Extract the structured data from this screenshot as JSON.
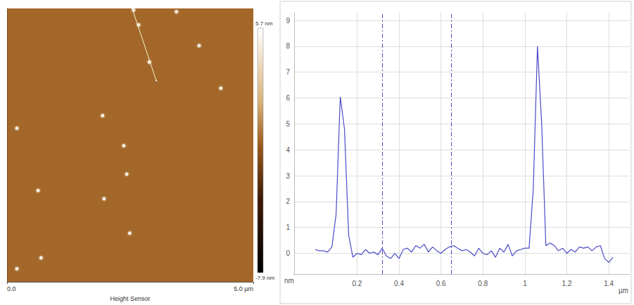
{
  "chart_data": [
    {
      "type": "scatter",
      "xlabel": "Height Sensor",
      "x": [
        2.57,
        3.44,
        2.67,
        2.89,
        3.9,
        4.34,
        0.2,
        1.94,
        2.37,
        2.43,
        0.63,
        1.97,
        2.49,
        0.69,
        0.2
      ],
      "values": [
        4.97,
        4.94,
        4.7,
        4.02,
        4.32,
        3.54,
        2.81,
        3.04,
        2.49,
        1.97,
        1.67,
        1.52,
        0.89,
        0.44,
        0.24
      ],
      "xlim": [
        0,
        5
      ],
      "ylim": [
        0,
        5
      ],
      "xticks": [
        {
          "value": 0,
          "label": "0.0"
        },
        {
          "value": 5,
          "label": "5.0 µm"
        }
      ],
      "tick_labels": "x",
      "color": "#ffffff",
      "marker": "circle",
      "profile_line": {
        "x": [
          2.54,
          3.03
        ],
        "y": [
          5.0,
          3.68
        ]
      },
      "color_bar": {
        "range": [
          -7.9,
          5.7
        ],
        "ticks": [
          {
            "value": 5.7,
            "label": "5.7 nm"
          },
          {
            "value": -7.9,
            "label": "-7.9 nm"
          }
        ]
      }
    },
    {
      "type": "line",
      "xlabel": "µm",
      "ylabel": "nm",
      "x": [
        0.0,
        0.02,
        0.04,
        0.06,
        0.08,
        0.1,
        0.12,
        0.14,
        0.16,
        0.18,
        0.2,
        0.22,
        0.24,
        0.26,
        0.28,
        0.3,
        0.32,
        0.34,
        0.36,
        0.38,
        0.4,
        0.42,
        0.44,
        0.46,
        0.48,
        0.5,
        0.52,
        0.54,
        0.56,
        0.58,
        0.6,
        0.62,
        0.64,
        0.66,
        0.68,
        0.7,
        0.72,
        0.74,
        0.76,
        0.78,
        0.8,
        0.82,
        0.84,
        0.86,
        0.88,
        0.9,
        0.92,
        0.94,
        0.96,
        0.98,
        1.0,
        1.02,
        1.04,
        1.06,
        1.08,
        1.1,
        1.12,
        1.14,
        1.16,
        1.18,
        1.2,
        1.22,
        1.24,
        1.26,
        1.28,
        1.3,
        1.32,
        1.34,
        1.36,
        1.38,
        1.4,
        1.42
      ],
      "values": [
        0.15,
        0.1,
        0.1,
        0.05,
        0.25,
        1.5,
        6.05,
        4.8,
        0.7,
        -0.15,
        0.0,
        -0.05,
        0.15,
        0.0,
        0.05,
        -0.05,
        0.2,
        -0.1,
        -0.2,
        0.0,
        -0.2,
        0.15,
        0.2,
        0.05,
        0.3,
        0.2,
        0.35,
        0.05,
        0.25,
        0.1,
        0.0,
        0.15,
        0.25,
        0.3,
        0.2,
        0.1,
        0.15,
        0.05,
        -0.1,
        0.2,
        0.0,
        -0.05,
        0.1,
        -0.15,
        0.2,
        0.05,
        0.35,
        -0.1,
        0.1,
        0.15,
        0.2,
        0.2,
        2.5,
        8.0,
        5.0,
        0.3,
        0.4,
        0.3,
        0.1,
        0.2,
        0.0,
        0.15,
        0.05,
        0.25,
        0.2,
        0.25,
        0.1,
        0.25,
        0.3,
        -0.2,
        -0.35,
        -0.15
      ],
      "xlim": [
        -0.1,
        1.5
      ],
      "ylim": [
        -0.8,
        9.3
      ],
      "xticks": [
        0.2,
        0.4,
        0.6,
        0.8,
        1,
        1.2,
        1.4
      ],
      "yticks": [
        0,
        1,
        2,
        3,
        4,
        5,
        6,
        7,
        8,
        9
      ],
      "grid": true,
      "color": "#4b4bc8",
      "cursor_x": [
        0.32,
        0.65
      ]
    }
  ]
}
